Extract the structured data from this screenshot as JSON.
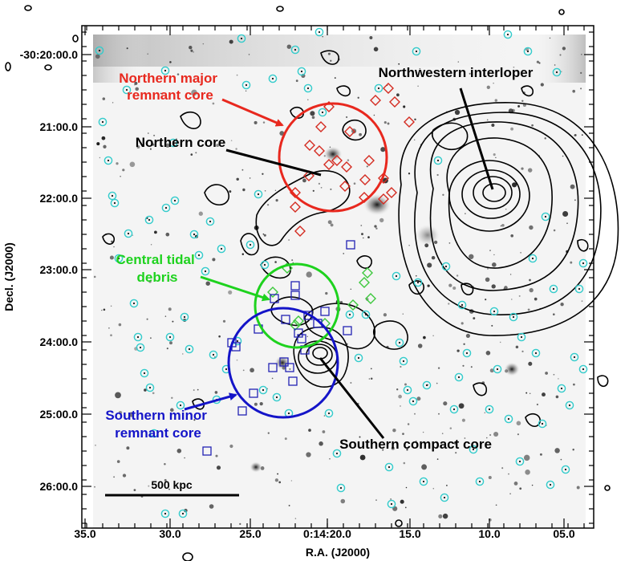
{
  "chart_data": {
    "type": "scatter",
    "xlabel": "R.A. (J2000)",
    "ylabel": "Decl. (J2000)",
    "x_ticks": [
      "35.0",
      "30.0",
      "25.0",
      "0:14:20.0",
      "15.0",
      "10.0",
      "05.0"
    ],
    "y_ticks": [
      "-30:20:00.0",
      "21:00.0",
      "22:00.0",
      "23:00.0",
      "24:00.0",
      "25:00.0",
      "26:00.0"
    ],
    "scale_bar_label": "500 kpc",
    "annotations": [
      {
        "id": "northern-major",
        "lines": [
          "Northern major",
          "remnant core"
        ],
        "color": "#e8281e"
      },
      {
        "id": "northern-core",
        "lines": [
          "Northern core"
        ],
        "color": "#000000"
      },
      {
        "id": "northwestern",
        "lines": [
          "Northwestern interloper"
        ],
        "color": "#000000"
      },
      {
        "id": "central-tidal",
        "lines": [
          "Central tidal",
          "debris"
        ],
        "color": "#1ed21e"
      },
      {
        "id": "southern-minor",
        "lines": [
          "Southern minor",
          "remnant core"
        ],
        "color": "#1414c8"
      },
      {
        "id": "southern-compact",
        "lines": [
          "Southern compact core"
        ],
        "color": "#000000"
      }
    ],
    "circles": [
      {
        "name": "northern-major-circle",
        "color": "#e8281e"
      },
      {
        "name": "central-tidal-circle",
        "color": "#1ed21e"
      },
      {
        "name": "southern-minor-circle",
        "color": "#1414c8"
      }
    ],
    "marker_sets": [
      {
        "name": "northern-members",
        "marker": "diamond",
        "color": "#d42a20"
      },
      {
        "name": "central-members",
        "marker": "diamond",
        "color": "#3cc83c"
      },
      {
        "name": "southern-members",
        "marker": "square",
        "color": "#2222b4"
      },
      {
        "name": "field-sources",
        "marker": "circle",
        "color": "#33cccc"
      }
    ],
    "grid": false,
    "legend": "none"
  }
}
